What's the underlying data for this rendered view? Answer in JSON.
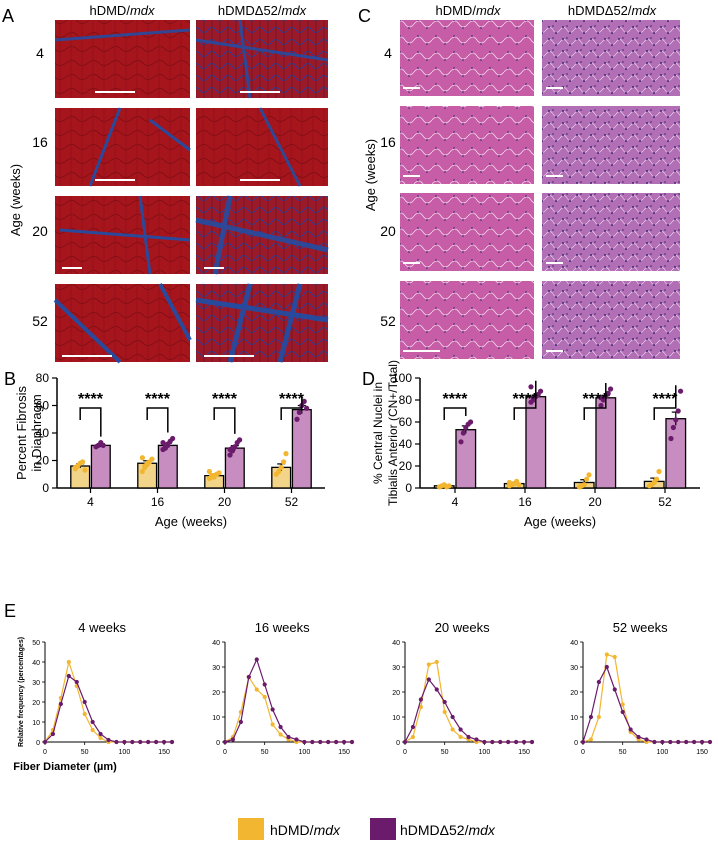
{
  "panel_letters": {
    "A": "A",
    "B": "B",
    "C": "C",
    "D": "D",
    "E": "E"
  },
  "histology": {
    "col_a": {
      "left": "hDMD/",
      "left_it": "mdx",
      "right": "hDMDΔ52/",
      "right_it": "mdx"
    },
    "col_c": {
      "left": "hDMD/",
      "left_it": "mdx",
      "right": "hDMDΔ52/",
      "right_it": "mdx"
    },
    "ages": [
      "4",
      "16",
      "20",
      "52"
    ],
    "age_axis": "Age (weeks)"
  },
  "colors": {
    "hdmd": "#F2B630",
    "del52": "#6A1B6B",
    "bar_hdmd": "#F3D58A",
    "bar_del52": "#C78CC0",
    "tri_red": "#A6141C",
    "tri_blue": "#1E4FA8",
    "he_pink": "#C45FA8"
  },
  "legend": {
    "hdmd": "hDMD/",
    "hdmd_it": "mdx",
    "del52": "hDMDΔ52/",
    "del52_it": "mdx"
  },
  "chart_data": [
    {
      "type": "bar",
      "panel": "B",
      "ylabel_line1": "Percent Fibrosis",
      "ylabel_line2": "in Diaphragm",
      "xlabel": "Age (weeks)",
      "categories": [
        "4",
        "16",
        "20",
        "52"
      ],
      "ylim": [
        0,
        80
      ],
      "yticks": [
        0,
        20,
        40,
        60,
        80
      ],
      "significance": "****",
      "series": [
        {
          "values": [
            16,
            18,
            9,
            15
          ],
          "errors": [
            1.5,
            1.8,
            1.2,
            2.5
          ],
          "points": [
            [
              14,
              16,
              18,
              19,
              13,
              15
            ],
            [
              12,
              15,
              17,
              19,
              21,
              22,
              16,
              18
            ],
            [
              7,
              8,
              9,
              10,
              11,
              12,
              9,
              8
            ],
            [
              10,
              12,
              15,
              19,
              25
            ]
          ]
        },
        {
          "values": [
            31,
            31,
            29,
            57
          ],
          "errors": [
            1.2,
            1.5,
            1.8,
            3
          ],
          "points": [
            [
              30,
              31,
              33,
              31
            ],
            [
              28,
              30,
              32,
              34,
              36,
              33,
              29,
              31
            ],
            [
              24,
              27,
              30,
              33,
              35,
              28,
              29
            ],
            [
              50,
              55,
              60,
              63,
              58
            ]
          ]
        }
      ]
    },
    {
      "type": "bar",
      "panel": "D",
      "ylabel_line1": "% Central Nuclei in",
      "ylabel_line2": "Tibialis Anterior (CN+/Total)",
      "xlabel": "Age (weeks)",
      "categories": [
        "4",
        "16",
        "20",
        "52"
      ],
      "ylim": [
        0,
        100
      ],
      "yticks": [
        0,
        20,
        40,
        60,
        80,
        100
      ],
      "significance": "****",
      "series": [
        {
          "values": [
            2,
            4,
            5,
            6
          ],
          "errors": [
            0.8,
            1.2,
            2.5,
            3
          ],
          "points": [
            [
              1,
              2,
              3,
              1,
              2
            ],
            [
              2,
              3,
              4,
              6,
              3,
              5
            ],
            [
              1,
              2,
              3,
              8,
              12
            ],
            [
              2,
              3,
              5,
              8,
              15
            ]
          ]
        },
        {
          "values": [
            53,
            83,
            82,
            63
          ],
          "errors": [
            3.5,
            1.5,
            2,
            6
          ],
          "points": [
            [
              42,
              50,
              55,
              58,
              60
            ],
            [
              78,
              80,
              83,
              85,
              88,
              92,
              82
            ],
            [
              75,
              80,
              83,
              86,
              90,
              82
            ],
            [
              45,
              55,
              62,
              70,
              88
            ]
          ]
        }
      ]
    },
    {
      "type": "line",
      "panel": "E",
      "title": "4 weeks",
      "ylabel": "Relative frequency (percentages)",
      "xlabel": "Fiber Diameter (µm)",
      "xlim": [
        0,
        160
      ],
      "ylim": [
        0,
        50
      ],
      "xticks": [
        0,
        50,
        100,
        150
      ],
      "yticks": [
        0,
        10,
        20,
        30,
        40,
        50
      ],
      "x": [
        0,
        10,
        20,
        30,
        40,
        50,
        60,
        70,
        80,
        90,
        100,
        110,
        120,
        130,
        140,
        150,
        160
      ],
      "series": [
        {
          "values": [
            0,
            6,
            22,
            40,
            28,
            14,
            6,
            2,
            0,
            0,
            0,
            0,
            0,
            0,
            0,
            0,
            0
          ]
        },
        {
          "values": [
            0,
            4,
            19,
            33,
            30,
            20,
            10,
            4,
            1,
            0,
            0,
            0,
            0,
            0,
            0,
            0,
            0
          ]
        }
      ]
    },
    {
      "type": "line",
      "panel": "E",
      "title": "16 weeks",
      "xlim": [
        0,
        160
      ],
      "ylim": [
        0,
        40
      ],
      "xticks": [
        0,
        50,
        100,
        150
      ],
      "yticks": [
        0,
        10,
        20,
        30,
        40
      ],
      "x": [
        0,
        10,
        20,
        30,
        40,
        50,
        60,
        70,
        80,
        90,
        100,
        110,
        120,
        130,
        140,
        150,
        160
      ],
      "series": [
        {
          "values": [
            0,
            2,
            12,
            26,
            21,
            18,
            7,
            3,
            1,
            0,
            0,
            0,
            0,
            0,
            0,
            0,
            0
          ]
        },
        {
          "values": [
            0,
            1,
            8,
            26,
            33,
            23,
            13,
            6,
            2,
            1,
            0,
            0,
            0,
            0,
            0,
            0,
            0
          ]
        }
      ]
    },
    {
      "type": "line",
      "panel": "E",
      "title": "20 weeks",
      "xlim": [
        0,
        160
      ],
      "ylim": [
        0,
        40
      ],
      "xticks": [
        0,
        50,
        100,
        150
      ],
      "yticks": [
        0,
        10,
        20,
        30,
        40
      ],
      "x": [
        0,
        10,
        20,
        30,
        40,
        50,
        60,
        70,
        80,
        90,
        100,
        110,
        120,
        130,
        140,
        150,
        160
      ],
      "series": [
        {
          "values": [
            0,
            2,
            14,
            31,
            32,
            12,
            5,
            2,
            1,
            0,
            0,
            0,
            0,
            0,
            0,
            0,
            0
          ]
        },
        {
          "values": [
            0,
            6,
            17,
            25,
            21,
            16,
            10,
            5,
            2,
            1,
            0,
            0,
            0,
            0,
            0,
            0,
            0
          ]
        }
      ]
    },
    {
      "type": "line",
      "panel": "E",
      "title": "52 weeks",
      "xlim": [
        0,
        160
      ],
      "ylim": [
        0,
        40
      ],
      "xticks": [
        0,
        50,
        100,
        150
      ],
      "yticks": [
        0,
        10,
        20,
        30,
        40
      ],
      "x": [
        0,
        10,
        20,
        30,
        40,
        50,
        60,
        70,
        80,
        90,
        100,
        110,
        120,
        130,
        140,
        150,
        160
      ],
      "series": [
        {
          "values": [
            0,
            1,
            10,
            35,
            34,
            15,
            4,
            1,
            0,
            0,
            0,
            0,
            0,
            0,
            0,
            0,
            0
          ]
        },
        {
          "values": [
            0,
            10,
            24,
            30,
            21,
            12,
            5,
            2,
            1,
            0,
            0,
            0,
            0,
            0,
            0,
            0,
            0
          ]
        }
      ]
    }
  ]
}
